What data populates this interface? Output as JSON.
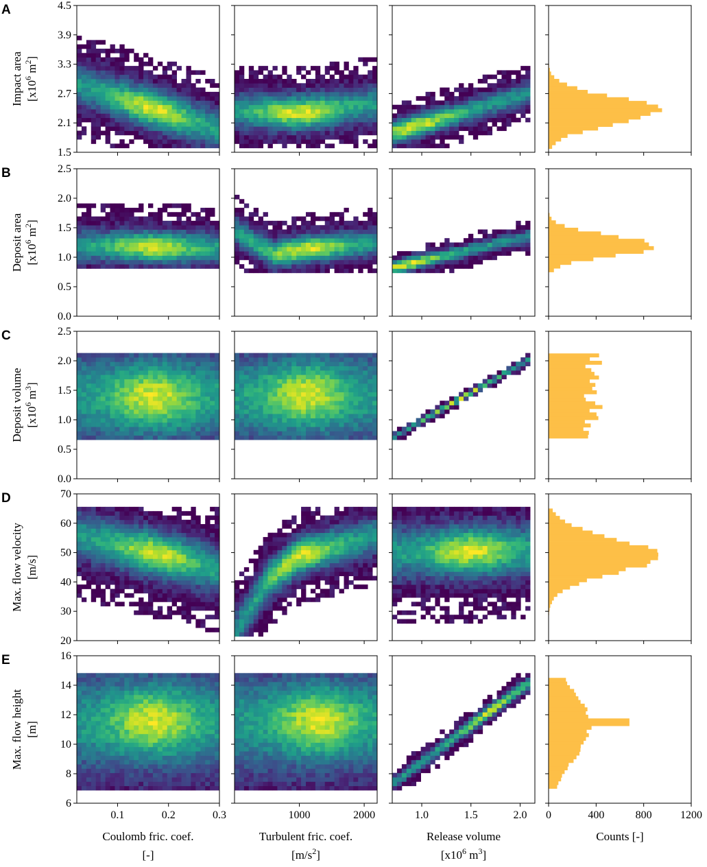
{
  "figure": {
    "row_labels": [
      "A",
      "B",
      "C",
      "D",
      "E"
    ],
    "y_labels": [
      {
        "line1": "Impact area",
        "line2": "[x10",
        "sup": "6",
        "line2b": " m",
        "sup2": "2",
        "line2c": "]"
      },
      {
        "line1": "Deposit area",
        "line2": "[x10",
        "sup": "6",
        "line2b": " m",
        "sup2": "2",
        "line2c": "]"
      },
      {
        "line1": "Deposit volume",
        "line2": "[x10",
        "sup": "6",
        "line2b": " m",
        "sup2": "3",
        "line2c": "]"
      },
      {
        "line1": "Max. flow velocity",
        "line2": "[m/s]",
        "sup": "",
        "line2b": "",
        "sup2": "",
        "line2c": ""
      },
      {
        "line1": "Max. flow height",
        "line2": "[m]",
        "sup": "",
        "line2b": "",
        "sup2": "",
        "line2c": ""
      }
    ],
    "x_labels": [
      {
        "line1": "Coulomb fric. coef.",
        "line2": "[-]"
      },
      {
        "line1": "Turbulent fric. coef.",
        "line2": "[m/s",
        "sup": "2",
        "line2b": "]"
      },
      {
        "line1": "Release volume",
        "line2": "[x10",
        "sup": "6",
        "line2b": " m",
        "sup2": "3",
        "line2c": "]"
      },
      {
        "line1": "Counts [-]",
        "line2": ""
      }
    ],
    "colors": {
      "hist": "#fdbf47",
      "frame": "#000000"
    }
  },
  "chart_data": [
    {
      "type": "heatmap",
      "row": "A",
      "xlabel": "Coulomb fric. coef. [-]",
      "ylabel": "Impact area [x10^6 m^2]",
      "xlim": [
        0.02,
        0.3
      ],
      "ylim": [
        1.5,
        4.5
      ],
      "xticks": [
        0.1,
        0.2,
        0.3
      ],
      "yticks": [
        1.5,
        2.1,
        2.7,
        3.3,
        3.9,
        4.5
      ],
      "xtick_labels": [
        "0.1",
        "0.2",
        "0.3"
      ],
      "ytick_labels": [
        "1.5",
        "2.1",
        "2.7",
        "3.3",
        "3.9",
        "4.5"
      ],
      "band": {
        "center": [
          [
            0.02,
            2.9
          ],
          [
            0.3,
            1.95
          ]
        ],
        "width": 0.45,
        "peak": [
          0.17,
          2.4
        ],
        "xmin": 0.02,
        "xmax": 0.3,
        "ymin": 1.6,
        "ymax": 3.9
      }
    },
    {
      "type": "heatmap",
      "row": "A",
      "xlabel": "Turbulent fric. coef. [m/s^2]",
      "ylabel": "Impact area [x10^6 m^2]",
      "xlim": [
        0,
        2200
      ],
      "ylim": [
        1.5,
        4.5
      ],
      "xticks": [
        1000,
        2000
      ],
      "yticks": [
        1.5,
        2.1,
        2.7,
        3.3,
        3.9,
        4.5
      ],
      "xtick_labels": [
        "1000",
        "2000"
      ],
      "ytick_labels": [],
      "band": {
        "center": [
          [
            0,
            2.35
          ],
          [
            1000,
            2.3
          ],
          [
            2200,
            2.5
          ]
        ],
        "width": 0.4,
        "peak": [
          1000,
          2.35
        ],
        "xmin": 0,
        "xmax": 2200,
        "ymin": 1.6,
        "ymax": 3.9
      }
    },
    {
      "type": "heatmap",
      "row": "A",
      "xlabel": "Release volume [x10^6 m^3]",
      "ylabel": "Impact area [x10^6 m^2]",
      "xlim": [
        0.7,
        2.15
      ],
      "ylim": [
        1.5,
        4.5
      ],
      "xticks": [
        1.0,
        1.5,
        2.0
      ],
      "yticks": [
        1.5,
        2.1,
        2.7,
        3.3,
        3.9,
        4.5
      ],
      "xtick_labels": [
        "1.0",
        "1.5",
        "2.0"
      ],
      "ytick_labels": [],
      "band": {
        "center": [
          [
            0.7,
            1.9
          ],
          [
            2.15,
            2.75
          ]
        ],
        "width": 0.25,
        "peak": [
          0.95,
          2.0
        ],
        "xmin": 0.7,
        "xmax": 2.1,
        "ymin": 1.6,
        "ymax": 3.9
      }
    },
    {
      "type": "histogram",
      "row": "A",
      "xlabel": "Counts [-]",
      "xlim": [
        0,
        1200
      ],
      "ylim": [
        1.5,
        4.5
      ],
      "xticks": [
        0,
        400,
        800,
        1200
      ],
      "xtick_labels": [
        "0",
        "400",
        "800",
        "1200"
      ],
      "yticks": [
        1.5,
        2.1,
        2.7,
        3.3,
        3.9,
        4.5
      ],
      "dist": {
        "mean": 2.35,
        "sd": 0.28,
        "peak": 940,
        "min": 1.6,
        "max": 3.65
      }
    },
    {
      "type": "heatmap",
      "row": "B",
      "xlabel": "Coulomb fric. coef. [-]",
      "ylabel": "Deposit area [x10^6 m^2]",
      "xlim": [
        0.02,
        0.3
      ],
      "ylim": [
        0.0,
        2.5
      ],
      "xticks": [
        0.1,
        0.2,
        0.3
      ],
      "yticks": [
        0.0,
        0.5,
        1.0,
        1.5,
        2.0,
        2.5
      ],
      "xtick_labels": [
        "0.1",
        "0.2",
        "0.3"
      ],
      "ytick_labels": [
        "0.0",
        "0.5",
        "1.0",
        "1.5",
        "2.0",
        "2.5"
      ],
      "band": {
        "center": [
          [
            0.02,
            1.2
          ],
          [
            0.3,
            1.15
          ]
        ],
        "width": 0.3,
        "peak": [
          0.17,
          1.2
        ],
        "xmin": 0.02,
        "xmax": 0.3,
        "ymin": 0.78,
        "ymax": 2.1
      }
    },
    {
      "type": "heatmap",
      "row": "B",
      "xlabel": "Turbulent fric. coef. [m/s^2]",
      "ylabel": "Deposit area [x10^6 m^2]",
      "xlim": [
        0,
        2200
      ],
      "ylim": [
        0.0,
        2.5
      ],
      "xticks": [
        1000,
        2000
      ],
      "yticks": [
        0.0,
        0.5,
        1.0,
        1.5,
        2.0,
        2.5
      ],
      "xtick_labels": [
        "1000",
        "2000"
      ],
      "ytick_labels": [],
      "band": {
        "center": [
          [
            0,
            1.45
          ],
          [
            600,
            1.05
          ],
          [
            1200,
            1.15
          ],
          [
            2200,
            1.25
          ]
        ],
        "width": 0.25,
        "peak": [
          1100,
          1.2
        ],
        "xmin": 0,
        "xmax": 2200,
        "ymin": 0.76,
        "ymax": 2.1
      }
    },
    {
      "type": "heatmap",
      "row": "B",
      "xlabel": "Release volume [x10^6 m^3]",
      "ylabel": "Deposit area [x10^6 m^2]",
      "xlim": [
        0.7,
        2.15
      ],
      "ylim": [
        0.0,
        2.5
      ],
      "xticks": [
        1.0,
        1.5,
        2.0
      ],
      "yticks": [
        0.0,
        0.5,
        1.0,
        1.5,
        2.0,
        2.5
      ],
      "xtick_labels": [
        "1.0",
        "1.5",
        "2.0"
      ],
      "ytick_labels": [],
      "band": {
        "center": [
          [
            0.7,
            0.82
          ],
          [
            2.15,
            1.38
          ]
        ],
        "width": 0.12,
        "peak": [
          0.85,
          0.9
        ],
        "xmin": 0.7,
        "xmax": 2.1,
        "ymin": 0.76,
        "ymax": 2.05
      }
    },
    {
      "type": "histogram",
      "row": "B",
      "xlabel": "Counts [-]",
      "xlim": [
        0,
        1200
      ],
      "ylim": [
        0.0,
        2.5
      ],
      "xticks": [
        0,
        400,
        800,
        1200
      ],
      "xtick_labels": [
        "0",
        "400",
        "800",
        "1200"
      ],
      "yticks": [
        0.0,
        0.5,
        1.0,
        1.5,
        2.0,
        2.5
      ],
      "dist": {
        "mean": 1.2,
        "sd": 0.17,
        "peak": 930,
        "min": 0.75,
        "max": 1.85
      }
    },
    {
      "type": "heatmap",
      "row": "C",
      "xlabel": "Coulomb fric. coef. [-]",
      "ylabel": "Deposit volume [x10^6 m^3]",
      "xlim": [
        0.02,
        0.3
      ],
      "ylim": [
        0.0,
        2.5
      ],
      "xticks": [
        0.1,
        0.2,
        0.3
      ],
      "yticks": [
        0.0,
        0.5,
        1.0,
        1.5,
        2.0,
        2.5
      ],
      "xtick_labels": [
        "0.1",
        "0.2",
        "0.3"
      ],
      "ytick_labels": [
        "0.0",
        "0.5",
        "1.0",
        "1.5",
        "2.0",
        "2.5"
      ],
      "band": {
        "center": [
          [
            0.02,
            1.38
          ],
          [
            0.3,
            1.38
          ]
        ],
        "width": 0.9,
        "peak": [
          0.17,
          1.4
        ],
        "xmin": 0.02,
        "xmax": 0.3,
        "ymin": 0.66,
        "ymax": 2.1
      }
    },
    {
      "type": "heatmap",
      "row": "C",
      "xlabel": "Turbulent fric. coef. [m/s^2]",
      "ylabel": "Deposit volume [x10^6 m^3]",
      "xlim": [
        0,
        2200
      ],
      "ylim": [
        0.0,
        2.5
      ],
      "xticks": [
        1000,
        2000
      ],
      "yticks": [
        0.0,
        0.5,
        1.0,
        1.5,
        2.0,
        2.5
      ],
      "xtick_labels": [
        "1000",
        "2000"
      ],
      "ytick_labels": [],
      "band": {
        "center": [
          [
            0,
            1.38
          ],
          [
            2200,
            1.38
          ]
        ],
        "width": 0.9,
        "peak": [
          1100,
          1.5
        ],
        "xmin": 0,
        "xmax": 2200,
        "ymin": 0.66,
        "ymax": 2.1
      }
    },
    {
      "type": "heatmap",
      "row": "C",
      "xlabel": "Release volume [x10^6 m^3]",
      "ylabel": "Deposit volume [x10^6 m^3]",
      "xlim": [
        0.7,
        2.15
      ],
      "ylim": [
        0.0,
        2.5
      ],
      "xticks": [
        1.0,
        1.5,
        2.0
      ],
      "yticks": [
        0.0,
        0.5,
        1.0,
        1.5,
        2.0,
        2.5
      ],
      "xtick_labels": [
        "1.0",
        "1.5",
        "2.0"
      ],
      "ytick_labels": [],
      "band": {
        "center": [
          [
            0.7,
            0.7
          ],
          [
            2.15,
            2.08
          ]
        ],
        "width": 0.05,
        "peak": [
          1.4,
          1.38
        ],
        "xmin": 0.7,
        "xmax": 2.1,
        "ymin": 0.66,
        "ymax": 2.1
      }
    },
    {
      "type": "histogram",
      "row": "C",
      "xlabel": "Counts [-]",
      "xlim": [
        0,
        1200
      ],
      "ylim": [
        0.0,
        2.5
      ],
      "xticks": [
        0,
        400,
        800,
        1200
      ],
      "xtick_labels": [
        "0",
        "400",
        "800",
        "1200"
      ],
      "yticks": [
        0.0,
        0.5,
        1.0,
        1.5,
        2.0,
        2.5
      ],
      "dist": {
        "uniform": true,
        "level": 380,
        "min": 0.66,
        "max": 2.1
      }
    },
    {
      "type": "heatmap",
      "row": "D",
      "xlabel": "Coulomb fric. coef. [-]",
      "ylabel": "Max. flow velocity [m/s]",
      "xlim": [
        0.02,
        0.3
      ],
      "ylim": [
        20,
        70
      ],
      "xticks": [
        0.1,
        0.2,
        0.3
      ],
      "yticks": [
        20,
        30,
        40,
        50,
        60,
        70
      ],
      "xtick_labels": [
        "0.1",
        "0.2",
        "0.3"
      ],
      "ytick_labels": [
        "20",
        "30",
        "40",
        "50",
        "60",
        "70"
      ],
      "band": {
        "center": [
          [
            0.02,
            56
          ],
          [
            0.3,
            44
          ]
        ],
        "width": 9,
        "peak": [
          0.18,
          52
        ],
        "xmin": 0.02,
        "xmax": 0.3,
        "ymin": 22,
        "ymax": 65
      }
    },
    {
      "type": "heatmap",
      "row": "D",
      "xlabel": "Turbulent fric. coef. [m/s^2]",
      "ylabel": "Max. flow velocity [m/s]",
      "xlim": [
        0,
        2200
      ],
      "ylim": [
        20,
        70
      ],
      "xticks": [
        1000,
        2000
      ],
      "yticks": [
        20,
        30,
        40,
        50,
        60,
        70
      ],
      "xtick_labels": [
        "1000",
        "2000"
      ],
      "ytick_labels": [],
      "band": {
        "center": [
          [
            50,
            24
          ],
          [
            500,
            40
          ],
          [
            1000,
            49
          ],
          [
            2200,
            56
          ]
        ],
        "width": 7,
        "peak": [
          1000,
          49
        ],
        "xmin": 0,
        "xmax": 2200,
        "ymin": 21,
        "ymax": 65
      }
    },
    {
      "type": "heatmap",
      "row": "D",
      "xlabel": "Release volume [x10^6 m^3]",
      "ylabel": "Max. flow velocity [m/s]",
      "xlim": [
        0.7,
        2.15
      ],
      "ylim": [
        20,
        70
      ],
      "xticks": [
        1.0,
        1.5,
        2.0
      ],
      "yticks": [
        20,
        30,
        40,
        50,
        60,
        70
      ],
      "xtick_labels": [
        "1.0",
        "1.5",
        "2.0"
      ],
      "ytick_labels": [],
      "band": {
        "center": [
          [
            0.7,
            50
          ],
          [
            2.15,
            51
          ]
        ],
        "width": 10,
        "peak": [
          1.5,
          50
        ],
        "xmin": 0.7,
        "xmax": 2.1,
        "ymin": 22,
        "ymax": 65
      }
    },
    {
      "type": "histogram",
      "row": "D",
      "xlabel": "Counts [-]",
      "xlim": [
        0,
        1200
      ],
      "ylim": [
        20,
        70
      ],
      "xticks": [
        0,
        400,
        800,
        1200
      ],
      "xtick_labels": [
        "0",
        "400",
        "800",
        "1200"
      ],
      "yticks": [
        20,
        30,
        40,
        50,
        60,
        70
      ],
      "dist": {
        "mean": 49,
        "sd": 6,
        "peak": 940,
        "min": 21,
        "max": 65
      }
    },
    {
      "type": "heatmap",
      "row": "E",
      "xlabel": "Coulomb fric. coef. [-]",
      "ylabel": "Max. flow height [m]",
      "xlim": [
        0.02,
        0.3
      ],
      "ylim": [
        6,
        16
      ],
      "xticks": [
        0.1,
        0.2,
        0.3
      ],
      "yticks": [
        6,
        8,
        10,
        12,
        14,
        16
      ],
      "xtick_labels": [
        "0.1",
        "0.2",
        "0.3"
      ],
      "ytick_labels": [
        "6",
        "8",
        "10",
        "12",
        "14",
        "16"
      ],
      "band": {
        "center": [
          [
            0.02,
            11.5
          ],
          [
            0.3,
            11.5
          ]
        ],
        "width": 4,
        "peak": [
          0.17,
          11.7
        ],
        "xmin": 0.02,
        "xmax": 0.3,
        "ymin": 7.0,
        "ymax": 14.8
      }
    },
    {
      "type": "heatmap",
      "row": "E",
      "xlabel": "Turbulent fric. coef. [m/s^2]",
      "ylabel": "Max. flow height [m]",
      "xlim": [
        0,
        2200
      ],
      "ylim": [
        6,
        16
      ],
      "xticks": [
        1000,
        2000
      ],
      "yticks": [
        6,
        8,
        10,
        12,
        14,
        16
      ],
      "xtick_labels": [
        "1000",
        "2000"
      ],
      "ytick_labels": [],
      "band": {
        "center": [
          [
            0,
            11.5
          ],
          [
            2200,
            11.5
          ]
        ],
        "width": 4,
        "peak": [
          1300,
          11.7
        ],
        "xmin": 0,
        "xmax": 2200,
        "ymin": 7.0,
        "ymax": 14.8
      }
    },
    {
      "type": "heatmap",
      "row": "E",
      "xlabel": "Release volume [x10^6 m^3]",
      "ylabel": "Max. flow height [m]",
      "xlim": [
        0.7,
        2.15
      ],
      "ylim": [
        6,
        16
      ],
      "xticks": [
        1.0,
        1.5,
        2.0
      ],
      "yticks": [
        6,
        8,
        10,
        12,
        14,
        16
      ],
      "xtick_labels": [
        "1.0",
        "1.5",
        "2.0"
      ],
      "ytick_labels": [],
      "band": {
        "center": [
          [
            0.7,
            7.3
          ],
          [
            2.15,
            14.5
          ]
        ],
        "width": 0.45,
        "peak": [
          1.7,
          12.2
        ],
        "xmin": 0.7,
        "xmax": 2.1,
        "ymin": 7.0,
        "ymax": 14.9
      }
    },
    {
      "type": "histogram",
      "row": "E",
      "xlabel": "Counts [-]",
      "xlim": [
        0,
        1200
      ],
      "ylim": [
        6,
        16
      ],
      "xticks": [
        0,
        400,
        800,
        1200
      ],
      "xtick_labels": [
        "0",
        "400",
        "800",
        "1200"
      ],
      "yticks": [
        6,
        8,
        10,
        12,
        14,
        16
      ],
      "dist": {
        "mean": 11.3,
        "sd": 2.3,
        "peak": 360,
        "min": 7.0,
        "max": 14.6,
        "spike": [
          11.6,
          680
        ]
      }
    }
  ]
}
